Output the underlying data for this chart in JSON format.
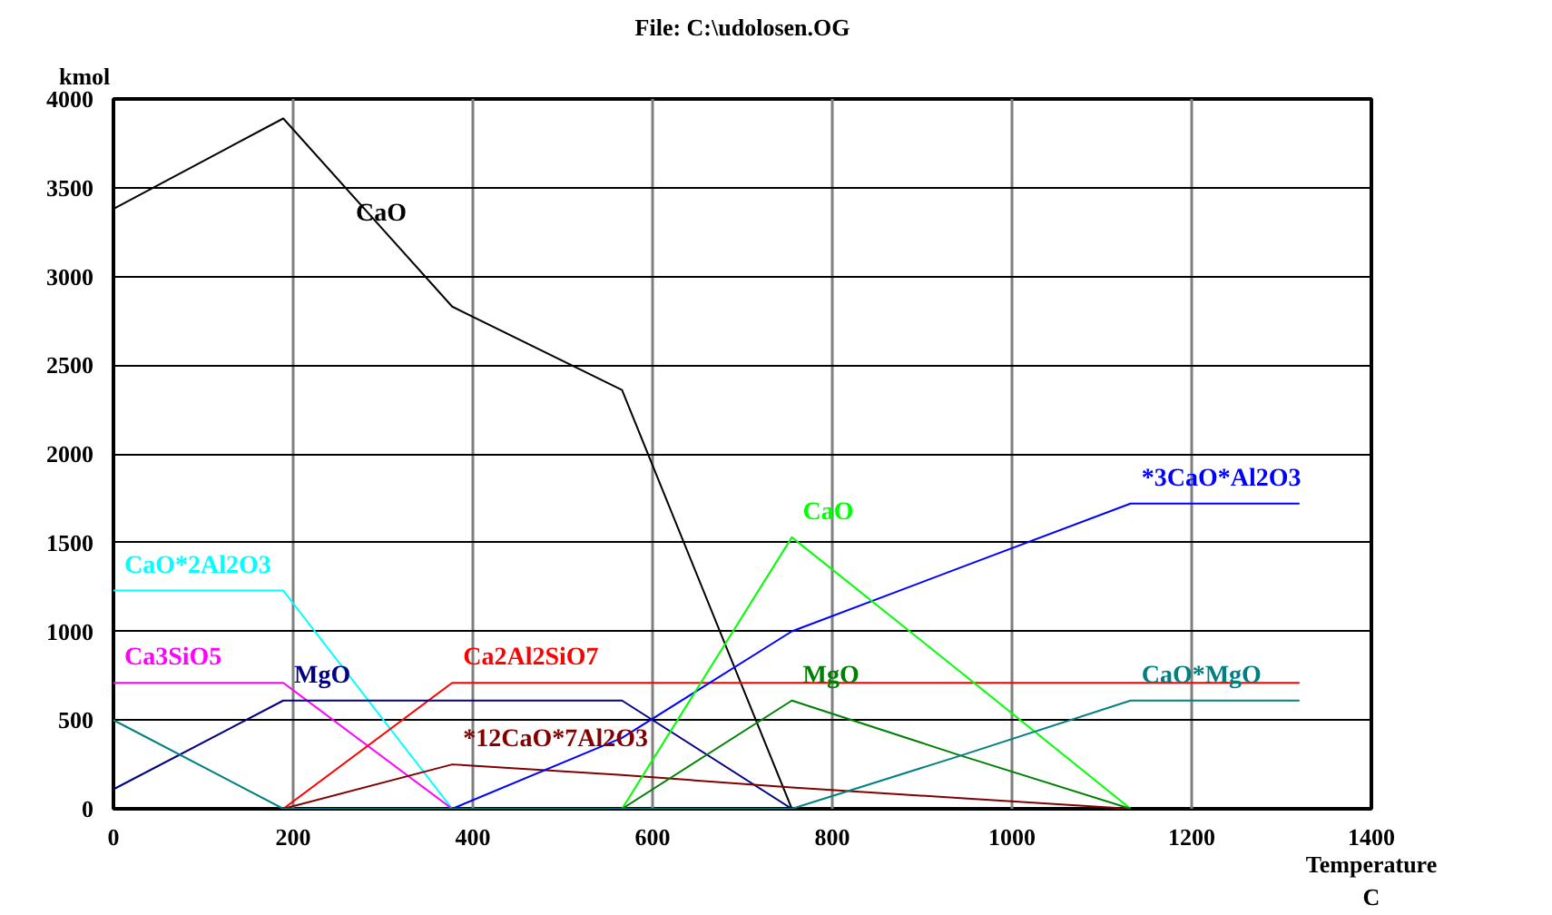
{
  "chart_data": {
    "type": "line",
    "title": "File: C:\\udolosen.OG",
    "xlabel": "Temperature C",
    "ylabel": "kmol",
    "xlim": [
      0,
      1400
    ],
    "ylim": [
      0,
      4000
    ],
    "xticks": [
      0,
      200,
      400,
      600,
      800,
      1000,
      1200,
      1400
    ],
    "yticks": [
      0,
      500,
      1000,
      1500,
      2000,
      2500,
      3000,
      3500,
      4000
    ],
    "grid": true,
    "marker": "none",
    "line_style": "solid",
    "series": [
      {
        "name": "CaO",
        "color": "#000000",
        "x": [
          0,
          189,
          377,
          566,
          755
        ],
        "values": [
          3380,
          3890,
          2830,
          2360,
          0
        ]
      },
      {
        "name": "CaO*2Al2O3",
        "color": "#00ffff",
        "x": [
          0,
          189,
          377
        ],
        "values": [
          1230,
          1230,
          0
        ]
      },
      {
        "name": "Ca3SiO5",
        "color": "#ff00ff",
        "x": [
          0,
          189,
          377
        ],
        "values": [
          710,
          710,
          0
        ]
      },
      {
        "name": "Ca2Al2SiO7",
        "color": "#ff0000",
        "x": [
          189,
          377,
          566,
          755,
          943,
          1132,
          1320
        ],
        "values": [
          0,
          710,
          710,
          710,
          710,
          710,
          710
        ]
      },
      {
        "name": "MgO",
        "color": "#000080",
        "x": [
          0,
          189,
          377,
          566,
          755
        ],
        "values": [
          110,
          610,
          610,
          610,
          0
        ]
      },
      {
        "name": "*12CaO*7Al2O3",
        "color": "#800000",
        "x": [
          189,
          377,
          566,
          755,
          943,
          1132
        ],
        "values": [
          0,
          250,
          190,
          120,
          60,
          0
        ]
      },
      {
        "name": "*3CaO*Al2O3",
        "color": "#0000ff",
        "x": [
          377,
          566,
          755,
          943,
          1132,
          1320
        ],
        "values": [
          0,
          400,
          1000,
          1360,
          1720,
          1720
        ]
      },
      {
        "name": "CaO",
        "color": "#00ff00",
        "x": [
          566,
          755,
          943,
          1132
        ],
        "values": [
          0,
          1530,
          770,
          0
        ]
      },
      {
        "name": "MgO",
        "color": "#008000",
        "x": [
          566,
          755,
          943,
          1132
        ],
        "values": [
          0,
          610,
          300,
          0
        ]
      },
      {
        "name": "CaO*MgO",
        "color": "#008080",
        "x": [
          0,
          189,
          377,
          566,
          755,
          943,
          1132,
          1320
        ],
        "values": [
          500,
          0,
          0,
          0,
          0,
          300,
          610,
          610
        ]
      }
    ]
  }
}
